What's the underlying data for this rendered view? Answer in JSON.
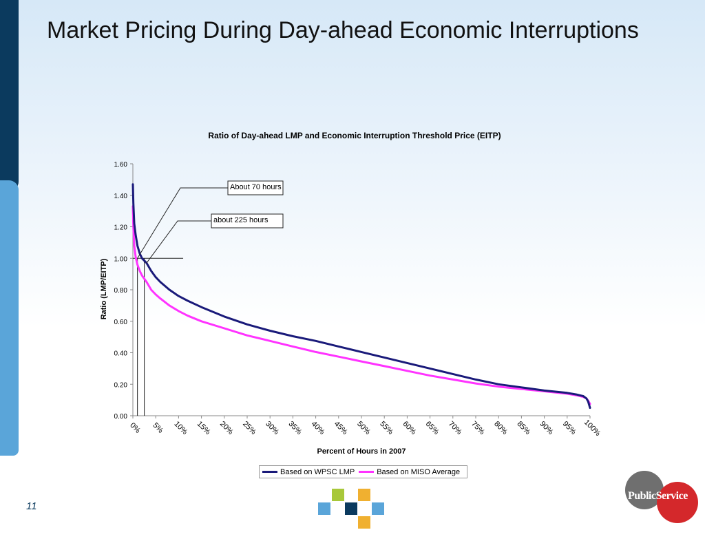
{
  "slide": {
    "title": "Market Pricing During Day-ahead Economic Interruptions",
    "page_number": "11"
  },
  "chart_data": {
    "type": "line",
    "title": "Ratio of Day-ahead LMP and Economic Interruption Threshold Price (EITP)",
    "xlabel": "Percent of Hours in 2007",
    "ylabel": "Ratio (LMP/EITP)",
    "xlim": [
      0,
      100
    ],
    "ylim": [
      0,
      1.6
    ],
    "yticks": [
      "0.00",
      "0.20",
      "0.40",
      "0.60",
      "0.80",
      "1.00",
      "1.20",
      "1.40",
      "1.60"
    ],
    "xticks": [
      "0%",
      "5%",
      "10%",
      "15%",
      "20%",
      "25%",
      "30%",
      "35%",
      "40%",
      "45%",
      "50%",
      "55%",
      "60%",
      "65%",
      "70%",
      "75%",
      "80%",
      "85%",
      "90%",
      "95%",
      "100%"
    ],
    "legend_position": "bottom",
    "series": [
      {
        "name": "Based on WPSC LMP",
        "color": "#1a1a7a",
        "x": [
          0,
          0.1,
          0.3,
          0.6,
          1,
          1.5,
          2,
          3,
          4,
          5,
          6,
          8,
          10,
          12,
          15,
          20,
          25,
          30,
          35,
          40,
          45,
          50,
          55,
          60,
          65,
          70,
          75,
          80,
          85,
          90,
          95,
          97,
          98.5,
          99.2,
          99.6,
          100
        ],
        "values": [
          1.47,
          1.35,
          1.22,
          1.15,
          1.08,
          1.03,
          1.0,
          0.97,
          0.92,
          0.88,
          0.85,
          0.8,
          0.76,
          0.73,
          0.69,
          0.63,
          0.58,
          0.54,
          0.505,
          0.475,
          0.44,
          0.405,
          0.37,
          0.335,
          0.3,
          0.265,
          0.23,
          0.2,
          0.18,
          0.16,
          0.145,
          0.135,
          0.125,
          0.11,
          0.09,
          0.05
        ]
      },
      {
        "name": "Based on MISO Average",
        "color": "#ff33ff",
        "x": [
          0,
          0.1,
          0.3,
          0.6,
          1,
          1.5,
          2,
          3,
          4,
          5,
          6,
          8,
          10,
          12,
          15,
          20,
          25,
          30,
          35,
          40,
          45,
          50,
          55,
          60,
          65,
          70,
          75,
          80,
          85,
          90,
          95,
          97,
          98.5,
          99.2,
          99.6,
          100
        ],
        "values": [
          1.33,
          1.2,
          1.08,
          1.01,
          0.96,
          0.92,
          0.89,
          0.85,
          0.8,
          0.77,
          0.745,
          0.7,
          0.665,
          0.635,
          0.6,
          0.555,
          0.51,
          0.475,
          0.44,
          0.405,
          0.375,
          0.345,
          0.315,
          0.285,
          0.255,
          0.23,
          0.205,
          0.185,
          0.17,
          0.155,
          0.14,
          0.13,
          0.12,
          0.11,
          0.095,
          0.075
        ]
      }
    ],
    "annotations": [
      {
        "text": "About 70 hours",
        "point_x": 1.0,
        "point_y": 1.0
      },
      {
        "text": "about 225 hours",
        "point_x": 3.0,
        "point_y": 0.97
      }
    ],
    "reference_lines": [
      {
        "orientation": "horizontal",
        "y": 1.0,
        "x_from": 0,
        "x_to": 11
      },
      {
        "orientation": "vertical",
        "x": 1.0,
        "y_from": 0,
        "y_to": 1.0
      },
      {
        "orientation": "vertical",
        "x": 2.5,
        "y_from": 0,
        "y_to": 1.0
      }
    ]
  }
}
